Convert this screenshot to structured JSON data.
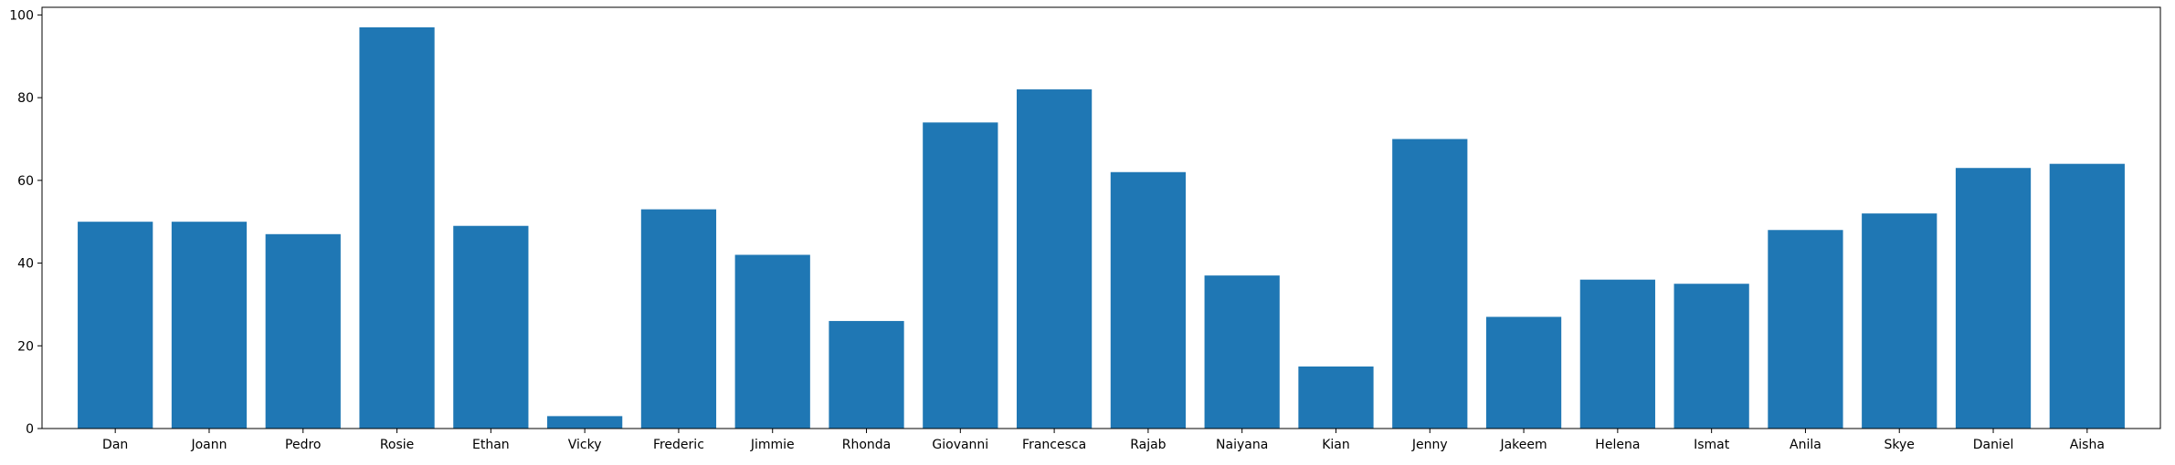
{
  "chart_data": {
    "type": "bar",
    "title": "",
    "xlabel": "",
    "ylabel": "",
    "categories": [
      "Dan",
      "Joann",
      "Pedro",
      "Rosie",
      "Ethan",
      "Vicky",
      "Frederic",
      "Jimmie",
      "Rhonda",
      "Giovanni",
      "Francesca",
      "Rajab",
      "Naiyana",
      "Kian",
      "Jenny",
      "Jakeem",
      "Helena",
      "Ismat",
      "Anila",
      "Skye",
      "Daniel",
      "Aisha"
    ],
    "values": [
      50,
      50,
      47,
      97,
      49,
      3,
      53,
      42,
      26,
      74,
      82,
      62,
      37,
      15,
      70,
      27,
      36,
      35,
      48,
      52,
      63,
      64
    ],
    "ylim": [
      0,
      101.85
    ],
    "yticks": [
      0,
      20,
      40,
      60,
      80,
      100
    ],
    "bar_color": "#1f77b4",
    "grid": false,
    "legend": "none"
  }
}
